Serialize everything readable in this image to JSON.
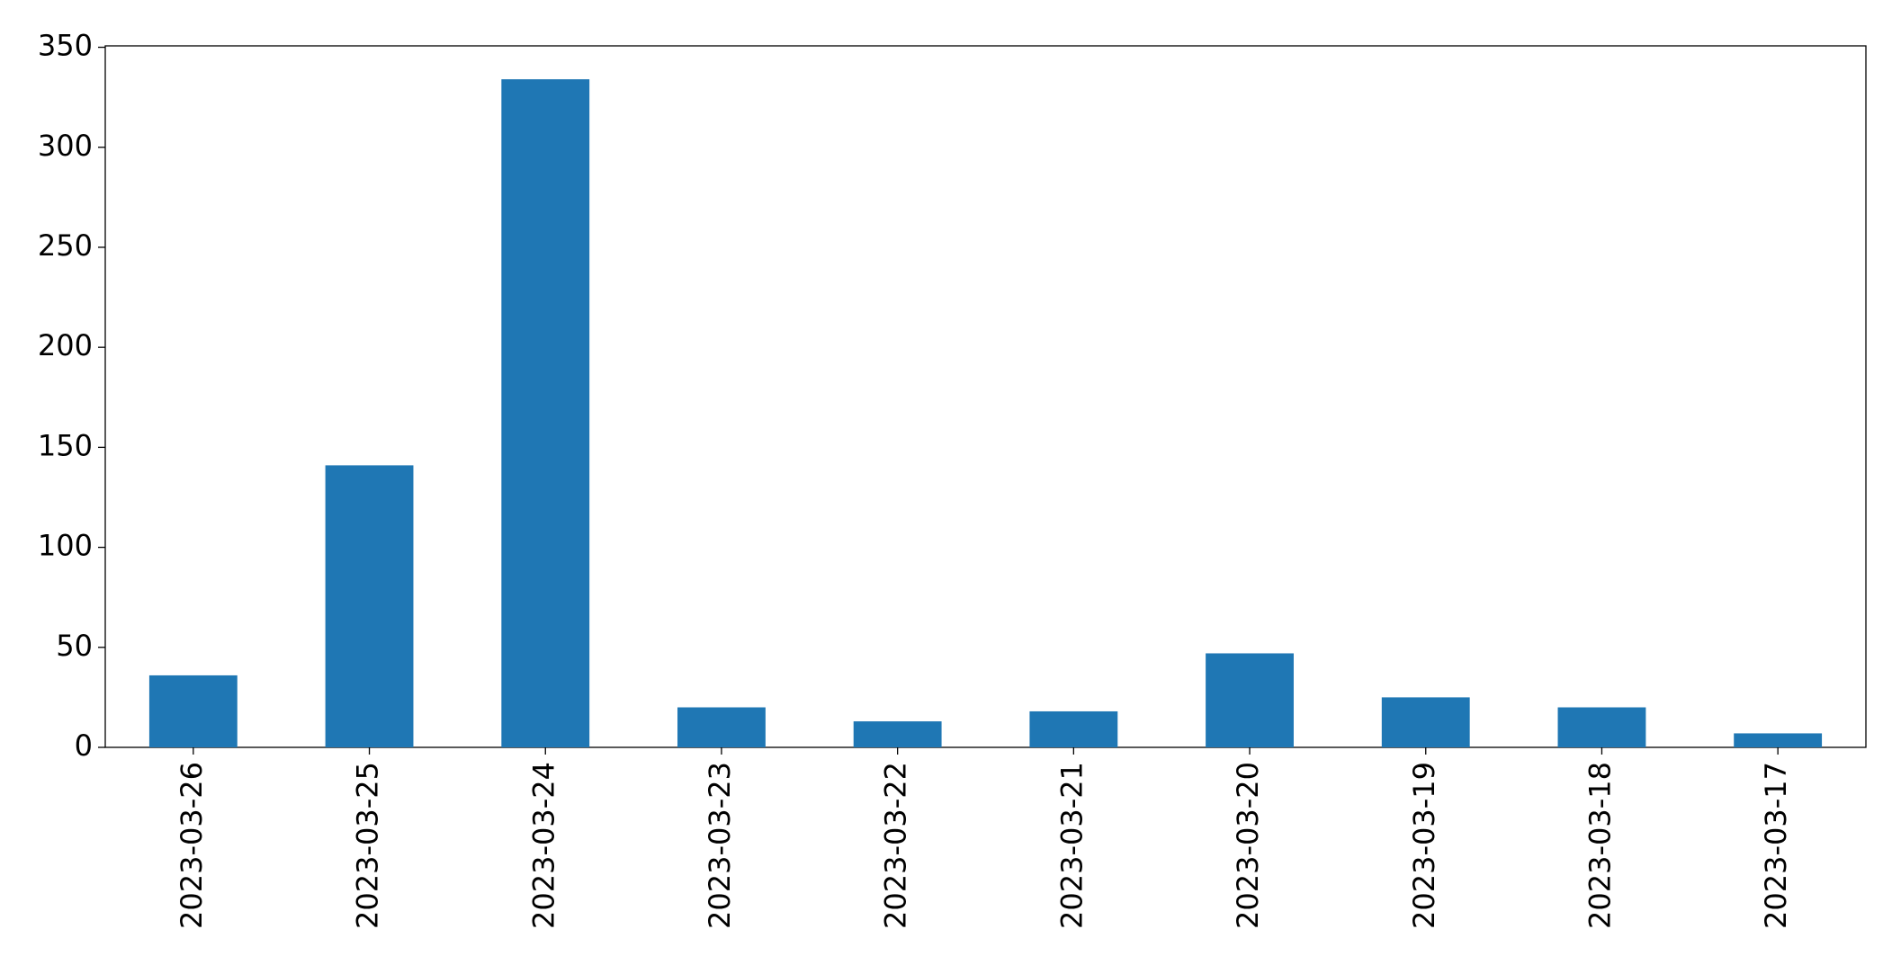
{
  "chart_data": {
    "type": "bar",
    "categories": [
      "2023-03-26",
      "2023-03-25",
      "2023-03-24",
      "2023-03-23",
      "2023-03-22",
      "2023-03-21",
      "2023-03-20",
      "2023-03-19",
      "2023-03-18",
      "2023-03-17"
    ],
    "values": [
      36,
      141,
      334,
      20,
      13,
      18,
      47,
      25,
      20,
      7
    ],
    "color": "#1f77b4",
    "ylim": [
      0,
      350.7
    ],
    "yticks": [
      0,
      50,
      100,
      150,
      200,
      250,
      300,
      350
    ],
    "grid": false
  }
}
